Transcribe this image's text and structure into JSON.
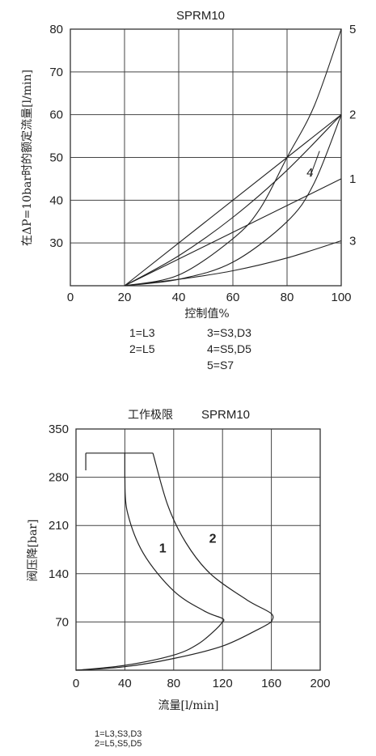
{
  "chart_data": [
    {
      "type": "line",
      "title": "SPRM10",
      "xlabel": "控制值%",
      "ylabel": "在ΔP=10bar时的额定流量[l/min]",
      "xlim": [
        0,
        100
      ],
      "ylim": [
        20,
        80
      ],
      "xticks": [
        "0",
        "20",
        "40",
        "60",
        "80",
        "100"
      ],
      "yticks": [
        "30",
        "40",
        "50",
        "60",
        "70",
        "80"
      ],
      "grid": true,
      "series": [
        {
          "name": "1",
          "x": [
            20,
            100
          ],
          "y": [
            20,
            45
          ]
        },
        {
          "name": "2",
          "x": [
            20,
            40,
            60,
            80,
            100
          ],
          "y": [
            20,
            27,
            36,
            47,
            60
          ]
        },
        {
          "name": "2",
          "x": [
            20,
            100
          ],
          "y": [
            20,
            60
          ]
        },
        {
          "name": "3",
          "x": [
            20,
            40,
            60,
            80,
            100
          ],
          "y": [
            20,
            21.5,
            23.5,
            26.5,
            30.5
          ]
        },
        {
          "name": "4",
          "x": [
            20,
            40,
            60,
            80,
            90,
            100
          ],
          "y": [
            20,
            21.5,
            25.5,
            35,
            44,
            60
          ]
        },
        {
          "name": "5",
          "x": [
            20,
            40,
            60,
            70,
            80,
            90,
            100
          ],
          "y": [
            20,
            22.5,
            31,
            38,
            50,
            62,
            80
          ]
        }
      ],
      "curve_labels": [
        {
          "text": "5",
          "x": 103,
          "y": 80
        },
        {
          "text": "2",
          "x": 103,
          "y": 60
        },
        {
          "text": "1",
          "x": 103,
          "y": 45
        },
        {
          "text": "3",
          "x": 103,
          "y": 30.5
        },
        {
          "text": "4",
          "x": 89,
          "y": 46.5
        }
      ],
      "legend": [
        "1=L3",
        "2=L5",
        "3=S3,D3",
        "4=S5,D5",
        "5=S7"
      ]
    },
    {
      "type": "line",
      "title": "工作极限 SPRM10",
      "title_cn": "工作极限",
      "title_en": "SPRM10",
      "xlabel": "流量[l/min]",
      "ylabel": "阀压降[bar]",
      "xlim": [
        0,
        200
      ],
      "ylim": [
        0,
        350
      ],
      "xticks": [
        "0",
        "40",
        "80",
        "120",
        "160",
        "200"
      ],
      "yticks": [
        "70",
        "140",
        "210",
        "280",
        "350"
      ],
      "grid": true,
      "series": [
        {
          "name": "1",
          "x": [
            0,
            40,
            80,
            100,
            115,
            120,
            120,
            105,
            80,
            55,
            42,
            40,
            40
          ],
          "y": [
            0,
            7,
            22,
            38,
            60,
            70,
            75,
            86,
            115,
            170,
            230,
            280,
            315
          ]
        },
        {
          "name": "2",
          "x": [
            0,
            40,
            80,
            120,
            150,
            160,
            160,
            140,
            110,
            90,
            75,
            63
          ],
          "y": [
            0,
            5,
            17,
            35,
            60,
            70,
            82,
            102,
            140,
            185,
            240,
            315
          ]
        },
        {
          "name": "",
          "x": [
            8,
            63
          ],
          "y": [
            315,
            315
          ]
        },
        {
          "name": "",
          "x": [
            8,
            8
          ],
          "y": [
            315,
            290
          ]
        }
      ],
      "curve_labels": [
        {
          "text": "1",
          "x": 71,
          "y": 178
        },
        {
          "text": "2",
          "x": 112,
          "y": 192
        }
      ],
      "legend": [
        "1=L3,S3,D3",
        "2=L5,S5,D5"
      ]
    }
  ]
}
